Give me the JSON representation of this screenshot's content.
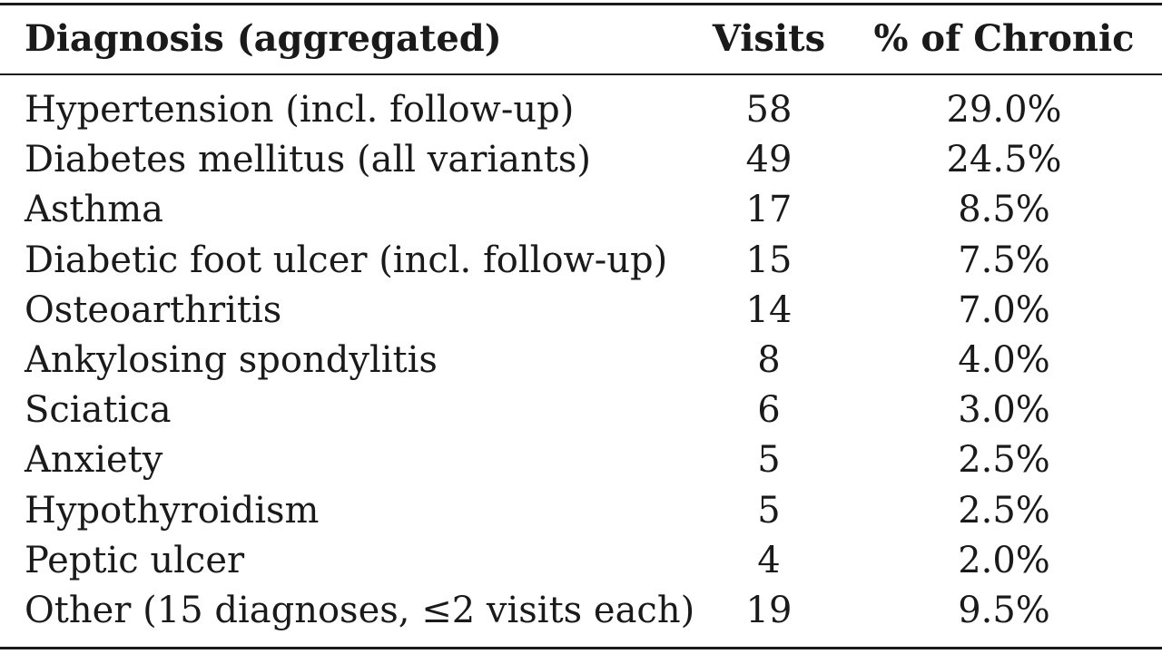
{
  "table": {
    "headers": {
      "diagnosis": "Diagnosis (aggregated)",
      "visits": "Visits",
      "percent": "% of Chronic"
    },
    "rows": [
      {
        "diagnosis": "Hypertension (incl. follow-up)",
        "visits": "58",
        "percent": "29.0%"
      },
      {
        "diagnosis": "Diabetes mellitus (all variants)",
        "visits": "49",
        "percent": "24.5%"
      },
      {
        "diagnosis": "Asthma",
        "visits": "17",
        "percent": "8.5%"
      },
      {
        "diagnosis": "Diabetic foot ulcer (incl. follow-up)",
        "visits": "15",
        "percent": "7.5%"
      },
      {
        "diagnosis": "Osteoarthritis",
        "visits": "14",
        "percent": "7.0%"
      },
      {
        "diagnosis": "Ankylosing spondylitis",
        "visits": "8",
        "percent": "4.0%"
      },
      {
        "diagnosis": "Sciatica",
        "visits": "6",
        "percent": "3.0%"
      },
      {
        "diagnosis": "Anxiety",
        "visits": "5",
        "percent": "2.5%"
      },
      {
        "diagnosis": "Hypothyroidism",
        "visits": "5",
        "percent": "2.5%"
      },
      {
        "diagnosis": "Peptic ulcer",
        "visits": "4",
        "percent": "2.0%"
      },
      {
        "diagnosis": "Other (15 diagnoses, ≤2 visits each)",
        "visits": "19",
        "percent": "9.5%"
      }
    ]
  }
}
